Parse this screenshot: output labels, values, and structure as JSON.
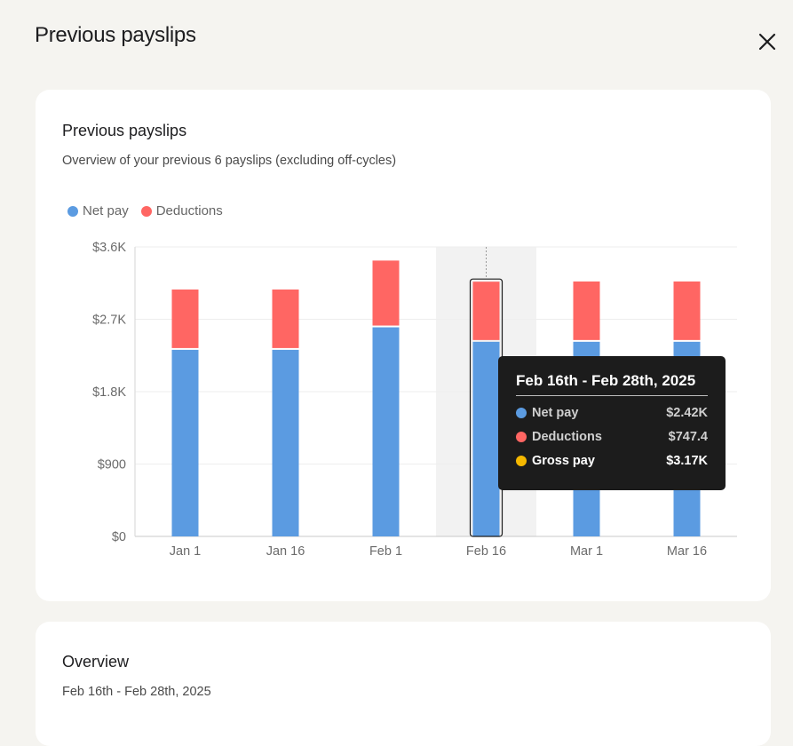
{
  "modal": {
    "title": "Previous payslips",
    "close_icon": "close-icon"
  },
  "chart_card": {
    "title": "Previous payslips",
    "subtitle": "Overview of your previous 6 payslips (excluding off-cycles)"
  },
  "legend": [
    {
      "label": "Net pay",
      "color": "#5b9be1"
    },
    {
      "label": "Deductions",
      "color": "#ff6663"
    }
  ],
  "chart_data": {
    "type": "bar",
    "stacked": true,
    "categories": [
      "Jan 1",
      "Jan 16",
      "Feb 1",
      "Feb 16",
      "Mar 1",
      "Mar 16"
    ],
    "series": [
      {
        "name": "Net pay",
        "color": "#5b9be1",
        "values": [
          2320,
          2320,
          2600,
          2420,
          2420,
          2420
        ]
      },
      {
        "name": "Deductions",
        "color": "#ff6663",
        "values": [
          750,
          750,
          830,
          747.4,
          750,
          750
        ]
      }
    ],
    "yticks": [
      "$0",
      "$900",
      "$1.8K",
      "$2.7K",
      "$3.6K"
    ],
    "ylim": [
      0,
      3600
    ],
    "highlighted_index": 3,
    "grid": true
  },
  "tooltip": {
    "title": "Feb 16th - Feb 28th, 2025",
    "rows": [
      {
        "label": "Net pay",
        "value": "$2.42K",
        "color": "#5b9be1"
      },
      {
        "label": "Deductions",
        "value": "$747.4",
        "color": "#ff6663"
      },
      {
        "label": "Gross pay",
        "value": "$3.17K",
        "color": "#f5b800"
      }
    ]
  },
  "overview": {
    "title": "Overview",
    "period": "Feb 16th - Feb 28th, 2025"
  }
}
